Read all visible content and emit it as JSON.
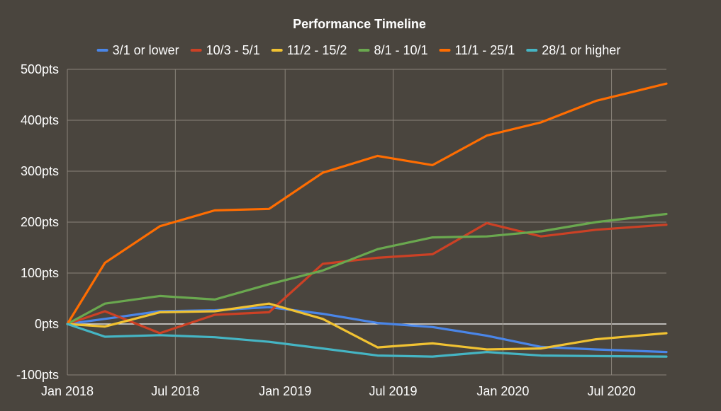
{
  "chart_data": {
    "type": "line",
    "title": "Performance Timeline",
    "xlabel": "",
    "ylabel": "",
    "legend_position": "top",
    "grid": true,
    "background": "#4a453e",
    "grid_color": "#8a847a",
    "zero_line_color": "#ffffff",
    "x_domain": [
      "2018-01-01",
      "2020-10-01"
    ],
    "x_ticks": [
      {
        "date": "2018-01-01",
        "label": "Jan 2018"
      },
      {
        "date": "2018-07-01",
        "label": "Jul 2018"
      },
      {
        "date": "2019-01-01",
        "label": "Jan 2019"
      },
      {
        "date": "2019-07-01",
        "label": "Jul 2019"
      },
      {
        "date": "2020-01-01",
        "label": "Jan 2020"
      },
      {
        "date": "2020-07-01",
        "label": "Jul 2020"
      }
    ],
    "y_unit": "pts",
    "ylim": [
      -100,
      500
    ],
    "y_ticks": [
      {
        "value": 500,
        "label": "500pts"
      },
      {
        "value": 400,
        "label": "400pts"
      },
      {
        "value": 300,
        "label": "300pts"
      },
      {
        "value": 200,
        "label": "200pts"
      },
      {
        "value": 100,
        "label": "100pts"
      },
      {
        "value": 0,
        "label": "0pts"
      },
      {
        "value": -100,
        "label": "-100pts"
      }
    ],
    "x": [
      "2018-01-01",
      "2018-04-01",
      "2018-07-01",
      "2018-10-01",
      "2019-01-01",
      "2019-04-01",
      "2019-07-01",
      "2019-10-01",
      "2020-01-01",
      "2020-04-01",
      "2020-07-01",
      "2020-10-01"
    ],
    "x_note_points": [
      "2018-01-01",
      "2018-03-05",
      "2018-06-05",
      "2018-09-05",
      "2018-12-05",
      "2019-03-05",
      "2019-06-05",
      "2019-09-05",
      "2019-12-05",
      "2020-03-05",
      "2020-06-05",
      "2020-10-01"
    ],
    "series": [
      {
        "name": "3/1 or lower",
        "color": "#4a86e8",
        "values": [
          0,
          10,
          25,
          27,
          33,
          20,
          2,
          -6,
          -23,
          -45,
          -50,
          -55
        ]
      },
      {
        "name": "10/3 - 5/1",
        "color": "#cc4125",
        "values": [
          0,
          25,
          -18,
          18,
          23,
          118,
          130,
          137,
          198,
          172,
          185,
          195
        ]
      },
      {
        "name": "11/2 - 15/2",
        "color": "#f1c232",
        "values": [
          0,
          -5,
          23,
          25,
          40,
          10,
          -46,
          -38,
          -50,
          -48,
          -30,
          -18
        ]
      },
      {
        "name": "8/1 - 10/1",
        "color": "#6aa84f",
        "values": [
          0,
          40,
          55,
          48,
          78,
          105,
          147,
          170,
          172,
          182,
          200,
          216
        ]
      },
      {
        "name": "11/1 - 25/1",
        "color": "#ff6d01",
        "values": [
          0,
          120,
          192,
          223,
          226,
          297,
          330,
          312,
          370,
          396,
          438,
          472
        ]
      },
      {
        "name": "28/1 or higher",
        "color": "#45b5c4",
        "values": [
          0,
          -25,
          -22,
          -26,
          -35,
          -48,
          -62,
          -64,
          -55,
          -62,
          -63,
          -64
        ]
      }
    ]
  }
}
